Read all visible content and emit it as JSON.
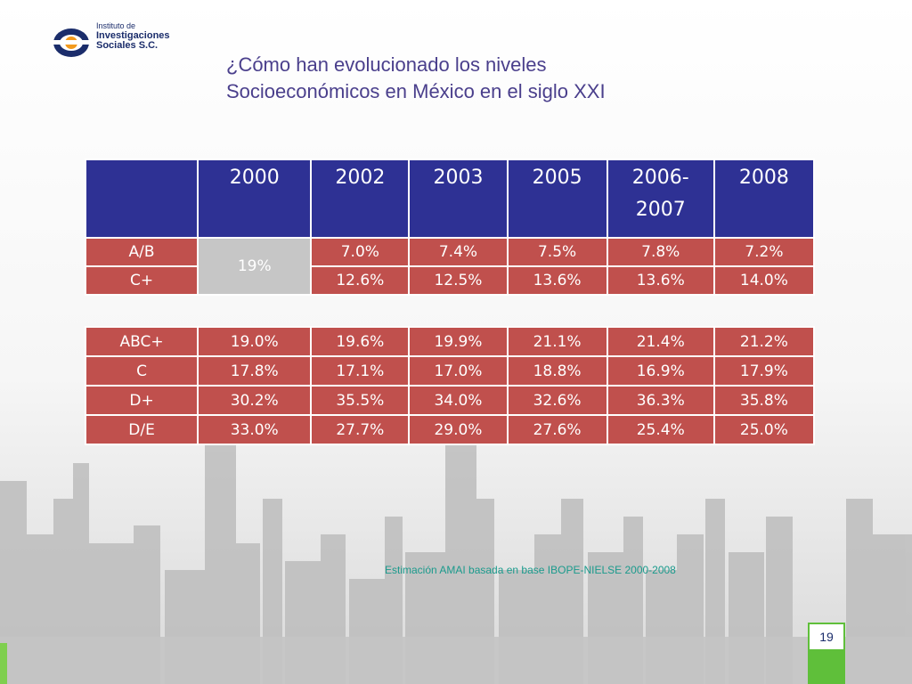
{
  "logo": {
    "line1": "Instituto de",
    "line2": "Investigaciones",
    "line3": "Sociales S.C."
  },
  "title": {
    "line1": "¿Cómo han evolucionado los niveles",
    "line2": "Socioeconómicos en México en el siglo XXI"
  },
  "table1": {
    "headers": [
      "",
      "2000",
      "2002",
      "2003",
      "2005",
      "2006-\n2007",
      "2008"
    ],
    "rows": [
      {
        "label": "A/B",
        "v2000": "19%",
        "values": [
          "7.0%",
          "7.4%",
          "7.5%",
          "7.8%",
          "7.2%"
        ]
      },
      {
        "label": "C+",
        "values": [
          "12.6%",
          "12.5%",
          "13.6%",
          "13.6%",
          "14.0%"
        ]
      }
    ]
  },
  "table2": {
    "rows": [
      {
        "label": "ABC+",
        "values": [
          "19.0%",
          "19.6%",
          "19.9%",
          "21.1%",
          "21.4%",
          "21.2%"
        ]
      },
      {
        "label": "C",
        "values": [
          "17.8%",
          "17.1%",
          "17.0%",
          "18.8%",
          "16.9%",
          "17.9%"
        ]
      },
      {
        "label": "D+",
        "values": [
          "30.2%",
          "35.5%",
          "34.0%",
          "32.6%",
          "36.3%",
          "35.8%"
        ]
      },
      {
        "label": "D/E",
        "values": [
          "33.0%",
          "27.7%",
          "29.0%",
          "27.6%",
          "25.4%",
          "25.0%"
        ]
      }
    ]
  },
  "source_note": "Estimación AMAI basada en base IBOPE-NIELSE 2000-2008",
  "page_number": "19",
  "colors": {
    "header_blue": "#2e3194",
    "row_red": "#c0504d",
    "title_purple": "#4a3f8c",
    "source_teal": "#1a9a8c",
    "accent_green": "#5fbf3a"
  }
}
